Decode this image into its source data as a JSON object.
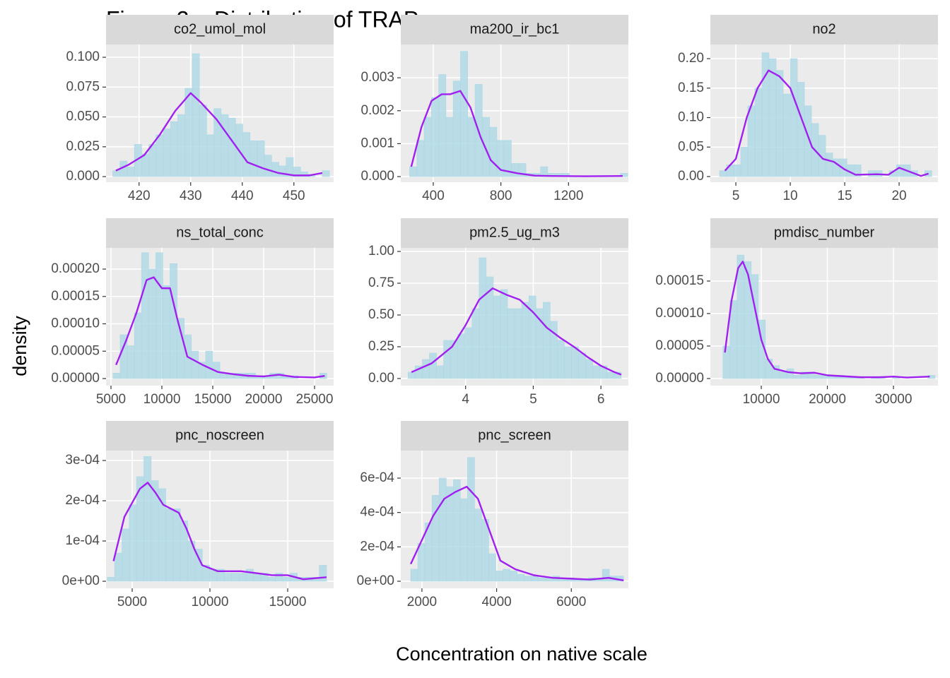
{
  "title": "Figure 2a: Distribution of TRAP",
  "x_label": "Concentration on native scale",
  "y_label": "density",
  "chart_data": [
    {
      "type": "histogram",
      "title": "co2_umol_mol",
      "color": "#add8e6",
      "grid": true,
      "bins": [
        414.9,
        416.3,
        417.7,
        419.1,
        420.5,
        421.9,
        423.3,
        424.7,
        426.1,
        427.5,
        428.9,
        430.3,
        431.7,
        433.1,
        434.5,
        435.9,
        437.3,
        438.7,
        440.1,
        441.5,
        442.9,
        444.3,
        445.7,
        447.1,
        448.5,
        449.9,
        451.3,
        452.7,
        454.1,
        455.5,
        456.9
      ],
      "values": [
        0.005,
        0.013,
        0.008,
        0.027,
        0.019,
        0.027,
        0.035,
        0.04,
        0.046,
        0.052,
        0.074,
        0.103,
        0.06,
        0.035,
        0.057,
        0.052,
        0.049,
        0.044,
        0.037,
        0.03,
        0.03,
        0.018,
        0.012,
        0.009,
        0.016,
        0.008,
        0.004,
        0.002,
        0,
        0.005
      ],
      "density": {
        "color": "#a020f0",
        "x": [
          415.5,
          418,
          421,
          424,
          427,
          430,
          432,
          435,
          438,
          441,
          444,
          447,
          450,
          453,
          455.5
        ],
        "values": [
          0.005,
          0.01,
          0.018,
          0.035,
          0.055,
          0.07,
          0.062,
          0.048,
          0.03,
          0.012,
          0.007,
          0.003,
          0.001,
          0.001,
          0.003
        ]
      },
      "xlim": [
        413.6,
        457.7
      ],
      "xticks": [
        420,
        430,
        440,
        450
      ],
      "ylim": [
        -0.0047,
        0.1107
      ],
      "yticks": [
        {
          "value": 0,
          "label": "0.000"
        },
        {
          "value": 0.025,
          "label": "0.025"
        },
        {
          "value": 0.05,
          "label": "0.050"
        },
        {
          "value": 0.075,
          "label": "0.075"
        },
        {
          "value": 0.1,
          "label": "0.100"
        }
      ]
    },
    {
      "type": "histogram",
      "title": "ma200_ir_bc1",
      "color": "#add8e6",
      "grid": true,
      "bins": [
        260,
        303,
        346,
        389,
        432,
        475,
        518,
        561,
        604,
        647,
        690,
        733,
        776,
        819,
        862,
        905,
        948,
        991,
        1034,
        1077,
        1120,
        1163,
        1206,
        1249,
        1292,
        1335,
        1378,
        1421,
        1464,
        1507,
        1550
      ],
      "values": [
        0.0003,
        0.0011,
        0.0018,
        0.0024,
        0.0031,
        0.0018,
        0.0029,
        0.0038,
        0.0018,
        0.0028,
        0.0018,
        0.0015,
        0.0011,
        0.0011,
        0.0004,
        0.0004,
        0.0001,
        0.0001,
        0.0003,
        0.0001,
        0.0001,
        0.0001,
        0,
        0,
        0,
        0,
        0,
        0,
        0,
        0.0001
      ],
      "density": {
        "color": "#a020f0",
        "x": [
          270,
          330,
          390,
          450,
          500,
          560,
          620,
          680,
          740,
          800,
          900,
          1000,
          1100,
          1300,
          1520
        ],
        "values": [
          0.0003,
          0.0015,
          0.0023,
          0.0025,
          0.0025,
          0.0026,
          0.0021,
          0.0012,
          0.0005,
          0.0002,
          0.0001,
          3e-05,
          2e-05,
          1e-05,
          2e-05
        ]
      },
      "xlim": [
        208,
        1554
      ],
      "xticks": [
        400,
        800,
        1200
      ],
      "ylim": [
        -0.00017,
        0.00401
      ],
      "yticks": [
        {
          "value": 0,
          "label": "0.000"
        },
        {
          "value": 0.001,
          "label": "0.001"
        },
        {
          "value": 0.002,
          "label": "0.002"
        },
        {
          "value": 0.003,
          "label": "0.003"
        }
      ]
    },
    {
      "type": "histogram",
      "title": "no2",
      "color": "#add8e6",
      "grid": true,
      "bins": [
        3.5,
        4.15,
        4.8,
        5.45,
        6.1,
        6.75,
        7.4,
        8.05,
        8.7,
        9.35,
        10,
        10.65,
        11.3,
        11.95,
        12.6,
        13.25,
        13.9,
        14.55,
        15.2,
        15.85,
        16.5,
        17.15,
        17.8,
        18.45,
        19.1,
        19.75,
        20.4,
        21.05,
        21.7,
        22.35,
        23
      ],
      "values": [
        0.01,
        0.02,
        0.02,
        0.05,
        0.12,
        0.15,
        0.21,
        0.2,
        0.18,
        0.14,
        0.2,
        0.16,
        0.12,
        0.09,
        0.07,
        0.04,
        0.03,
        0.03,
        0.02,
        0.02,
        0,
        0.01,
        0.01,
        0,
        0.01,
        0.02,
        0.02,
        0.01,
        0,
        0.01
      ],
      "density": {
        "color": "#a020f0",
        "x": [
          4,
          5,
          6,
          7,
          8,
          9,
          10,
          11,
          12,
          13,
          14,
          15,
          16,
          18,
          19,
          20,
          21,
          22,
          22.7
        ],
        "values": [
          0.01,
          0.03,
          0.1,
          0.15,
          0.18,
          0.17,
          0.15,
          0.1,
          0.05,
          0.03,
          0.025,
          0.012,
          0.003,
          0.004,
          0.003,
          0.015,
          0.008,
          0.001,
          0.005
        ]
      },
      "xlim": [
        2.66,
        23.57
      ],
      "xticks": [
        5,
        10,
        15,
        20
      ],
      "ylim": [
        -0.0096,
        0.224
      ],
      "yticks": [
        {
          "value": 0,
          "label": "0.00"
        },
        {
          "value": 0.05,
          "label": "0.05"
        },
        {
          "value": 0.1,
          "label": "0.10"
        },
        {
          "value": 0.15,
          "label": "0.15"
        },
        {
          "value": 0.2,
          "label": "0.20"
        }
      ]
    },
    {
      "type": "histogram",
      "title": "ns_total_conc",
      "color": "#add8e6",
      "grid": true,
      "bins": [
        5200,
        5900,
        6600,
        7300,
        8000,
        8700,
        9400,
        10100,
        10800,
        11500,
        12200,
        12900,
        13600,
        14300,
        15000,
        15700,
        16400,
        17100,
        17800,
        18500,
        19200,
        19900,
        20600,
        21300,
        22000,
        22700,
        23400,
        24100,
        24800,
        25500,
        26200
      ],
      "values": [
        1e-05,
        8e-05,
        6e-05,
        0.00012,
        0.00023,
        0.0002,
        0.00023,
        0.00017,
        0.00021,
        0.00011,
        8e-05,
        5e-05,
        3e-05,
        5e-05,
        3e-05,
        1e-05,
        1e-05,
        1e-05,
        1e-05,
        1e-05,
        5e-06,
        5e-06,
        1e-05,
        1e-05,
        5e-06,
        5e-06,
        0,
        0,
        0,
        1e-05
      ],
      "density": {
        "color": "#a020f0",
        "x": [
          5500,
          6500,
          7500,
          8500,
          9200,
          10000,
          10800,
          11500,
          12500,
          14000,
          15500,
          17000,
          18500,
          20000,
          21500,
          23000,
          25000,
          26000
        ],
        "values": [
          2.5e-05,
          7e-05,
          0.00012,
          0.00018,
          0.000185,
          0.000165,
          0.000165,
          0.00011,
          4e-05,
          2.5e-05,
          1.2e-05,
          8e-06,
          5e-06,
          4e-06,
          7e-06,
          3e-06,
          2e-06,
          5e-06
        ]
      },
      "xlim": [
        4514,
        26875
      ],
      "xticks": [
        5000,
        10000,
        15000,
        20000,
        25000
      ],
      "ylim": [
        -1.29e-05,
        0.0002387
      ],
      "yticks": [
        {
          "value": 0,
          "label": "0.00000"
        },
        {
          "value": 5e-05,
          "label": "0.00005"
        },
        {
          "value": 0.0001,
          "label": "0.00010"
        },
        {
          "value": 0.00015,
          "label": "0.00015"
        },
        {
          "value": 0.0002,
          "label": "0.00020"
        }
      ]
    },
    {
      "type": "histogram",
      "title": "pm2.5_ug_m3",
      "color": "#add8e6",
      "grid": true,
      "bins": [
        3.15,
        3.255,
        3.36,
        3.465,
        3.57,
        3.675,
        3.78,
        3.885,
        3.99,
        4.095,
        4.2,
        4.305,
        4.41,
        4.515,
        4.62,
        4.725,
        4.83,
        4.935,
        5.04,
        5.145,
        5.25,
        5.355,
        5.46,
        5.565,
        5.67,
        5.775,
        5.88,
        5.985,
        6.09,
        6.195,
        6.3
      ],
      "values": [
        0.05,
        0.1,
        0.15,
        0.2,
        0.1,
        0.3,
        0.3,
        0.35,
        0.4,
        0.55,
        0.95,
        0.8,
        0.65,
        0.7,
        0.55,
        0.55,
        0.6,
        0.65,
        0.55,
        0.6,
        0.45,
        0.3,
        0.25,
        0.25,
        0.2,
        0.15,
        0.1,
        0.1,
        0.05,
        0.05
      ],
      "density": {
        "color": "#a020f0",
        "x": [
          3.2,
          3.5,
          3.8,
          4.0,
          4.2,
          4.4,
          4.6,
          4.8,
          5.0,
          5.2,
          5.4,
          5.6,
          5.8,
          6.0,
          6.2,
          6.3
        ],
        "values": [
          0.05,
          0.12,
          0.25,
          0.42,
          0.62,
          0.71,
          0.66,
          0.62,
          0.52,
          0.4,
          0.32,
          0.25,
          0.17,
          0.1,
          0.05,
          0.03
        ]
      },
      "xlim": [
        3.042,
        6.406
      ],
      "xticks": [
        4,
        5,
        6
      ],
      "ylim": [
        -0.056,
        1.028
      ],
      "yticks": [
        {
          "value": 0,
          "label": "0.00"
        },
        {
          "value": 0.25,
          "label": "0.25"
        },
        {
          "value": 0.5,
          "label": "0.50"
        },
        {
          "value": 0.75,
          "label": "0.75"
        },
        {
          "value": 1,
          "label": "1.00"
        }
      ]
    },
    {
      "type": "histogram",
      "title": "pmdisc_number",
      "color": "#add8e6",
      "grid": true,
      "bins": [
        4200,
        5270,
        6340,
        7410,
        8480,
        9550,
        10620,
        11690,
        12760,
        13830,
        14900,
        15970,
        17040,
        18110,
        19180,
        20250,
        21320,
        22390,
        23460,
        24530,
        25600,
        26670,
        27740,
        28810,
        29880,
        30950,
        32020,
        33090,
        34160,
        35230,
        36300
      ],
      "values": [
        5e-05,
        0.00012,
        0.00019,
        0.00018,
        0.00016,
        9e-05,
        3e-05,
        2e-05,
        1e-05,
        1.5e-05,
        5e-06,
        1e-05,
        1e-05,
        5e-06,
        5e-06,
        3e-06,
        5e-06,
        2e-06,
        1e-06,
        2e-06,
        0,
        1e-06,
        3e-06,
        0,
        3e-06,
        0,
        0,
        0,
        0,
        5e-06
      ],
      "density": {
        "color": "#a020f0",
        "x": [
          4500,
          5500,
          6500,
          7200,
          8000,
          9000,
          10000,
          11000,
          12000,
          14000,
          16000,
          18000,
          20000,
          25000,
          28000,
          30000,
          32000,
          35500
        ],
        "values": [
          4e-05,
          0.00012,
          0.00017,
          0.00018,
          0.00016,
          0.00011,
          6e-05,
          3e-05,
          1.5e-05,
          1e-05,
          8e-06,
          9e-06,
          5e-06,
          2e-06,
          2e-06,
          3e-06,
          1.5e-06,
          3e-06
        ]
      },
      "xlim": [
        2299,
        36738
      ],
      "xticks": [
        10000,
        20000,
        30000
      ],
      "ylim": [
        -1.09e-05,
        0.000201
      ],
      "yticks": [
        {
          "value": 0,
          "label": "0.00000"
        },
        {
          "value": 5e-05,
          "label": "0.00005"
        },
        {
          "value": 0.0001,
          "label": "0.00010"
        },
        {
          "value": 0.00015,
          "label": "0.00015"
        }
      ]
    },
    {
      "type": "histogram",
      "title": "pnc_noscreen",
      "color": "#add8e6",
      "grid": true,
      "bins": [
        3400,
        3870,
        4340,
        4810,
        5280,
        5750,
        6220,
        6690,
        7160,
        7630,
        8100,
        8570,
        9040,
        9510,
        9980,
        10450,
        10920,
        11390,
        11860,
        12330,
        12800,
        13270,
        13740,
        14210,
        14680,
        15150,
        15620,
        16090,
        16560,
        17030,
        17500
      ],
      "values": [
        1e-05,
        7e-05,
        0.00013,
        0.00019,
        0.00026,
        0.00031,
        0.00025,
        0.00023,
        0.00018,
        0.00018,
        0.00015,
        0.0001,
        8e-05,
        4e-05,
        3e-05,
        3e-05,
        2e-05,
        2e-05,
        2e-05,
        3e-05,
        2e-05,
        2e-05,
        1e-05,
        2e-05,
        1e-05,
        2e-05,
        1e-05,
        1e-05,
        1e-05,
        4e-05
      ],
      "density": {
        "color": "#a020f0",
        "x": [
          3800,
          4500,
          5500,
          6000,
          6500,
          7000,
          7500,
          8000,
          8500,
          9000,
          9500,
          10500,
          12000,
          13000,
          14000,
          15000,
          16000,
          17500
        ],
        "values": [
          5e-05,
          0.00016,
          0.00023,
          0.000245,
          0.00022,
          0.00019,
          0.00018,
          0.00017,
          0.00013,
          8e-05,
          4e-05,
          2.5e-05,
          2.5e-05,
          2e-05,
          1.5e-05,
          1.5e-05,
          5e-06,
          1e-05
        ]
      },
      "xlim": [
        3318,
        17955
      ],
      "xticks": [
        5000,
        10000,
        15000
      ],
      "ylim": [
        -1.75e-05,
        0.0003246
      ],
      "yticks": [
        {
          "value": 0,
          "label": "0e+00"
        },
        {
          "value": 0.0001,
          "label": "1e-04"
        },
        {
          "value": 0.0002,
          "label": "2e-04"
        },
        {
          "value": 0.0003,
          "label": "3e-04"
        }
      ]
    },
    {
      "type": "histogram",
      "title": "pnc_screen",
      "color": "#add8e6",
      "grid": true,
      "bins": [
        1700,
        1890,
        2080,
        2270,
        2460,
        2650,
        2840,
        3030,
        3220,
        3410,
        3600,
        3790,
        3980,
        4170,
        4360,
        4550,
        4740,
        4930,
        5120,
        5310,
        5500,
        5690,
        5880,
        6070,
        6260,
        6450,
        6640,
        6830,
        7020,
        7210,
        7400
      ],
      "values": [
        7e-05,
        0.00022,
        0.00034,
        0.0005,
        0.0006,
        0.00055,
        0.00059,
        0.00048,
        0.00072,
        0.00042,
        0.00036,
        0.00016,
        6e-05,
        7e-05,
        6e-05,
        4e-05,
        3e-05,
        3e-05,
        2e-05,
        2e-05,
        3e-05,
        1e-05,
        2e-05,
        1e-05,
        1e-05,
        2e-05,
        1e-05,
        7e-05,
        3e-05,
        3e-05
      ],
      "density": {
        "color": "#a020f0",
        "x": [
          1700,
          2000,
          2300,
          2600,
          2900,
          3200,
          3500,
          3800,
          4100,
          4500,
          5000,
          5500,
          6000,
          6500,
          7000,
          7400
        ],
        "values": [
          0.0001,
          0.00024,
          0.00038,
          0.00048,
          0.00052,
          0.00055,
          0.00048,
          0.0003,
          0.00012,
          7e-05,
          3.5e-05,
          2e-05,
          1.5e-05,
          1e-05,
          2e-05,
          5e-06
        ]
      },
      "xlim": [
        1434,
        7528
      ],
      "xticks": [
        2000,
        4000,
        6000
      ],
      "ylim": [
        -4.1e-05,
        0.00076
      ],
      "yticks": [
        {
          "value": 0,
          "label": "0e+00"
        },
        {
          "value": 0.0002,
          "label": "2e-04"
        },
        {
          "value": 0.0004,
          "label": "4e-04"
        },
        {
          "value": 0.0006,
          "label": "6e-04"
        }
      ]
    }
  ]
}
